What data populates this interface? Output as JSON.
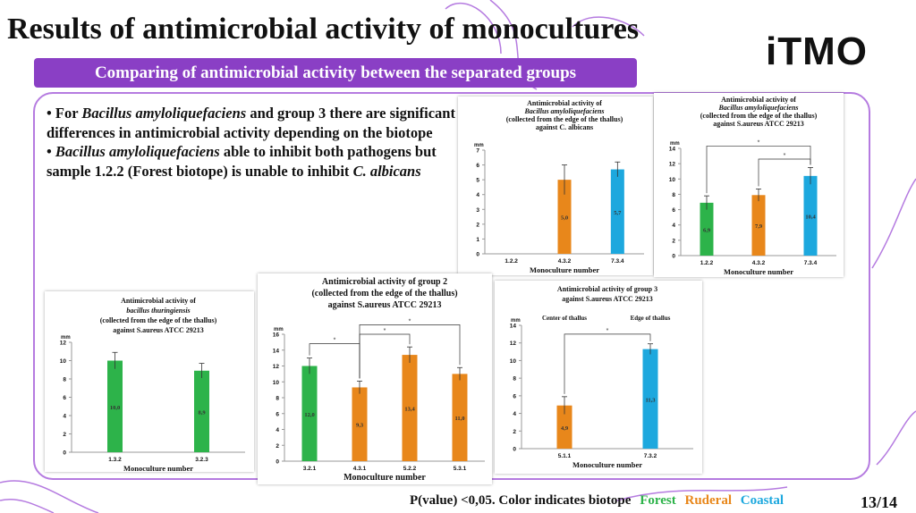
{
  "header": {
    "title": "Results of antimicrobial activity of monocultures",
    "logo": "iTMO",
    "banner": "Comparing of antimicrobial activity between the separated groups"
  },
  "bullets": [
    {
      "a": "• For ",
      "b": "Bacillus amyloliquefaciens",
      "c": " and group 3 there are significant differences in antimicrobial activity depending on the biotope"
    },
    {
      "a": "• ",
      "b": "Bacillus amyloliquefaciens",
      "c": " able to inhibit both pathogens but sample 1.2.2 (Forest biotope) is unable to inhibit ",
      "d": "C. albicans"
    }
  ],
  "footer": {
    "note": "P(value) <0,05. Color indicates biotope",
    "forest": "Forest",
    "ruderal": "Ruderal",
    "coastal": "Coastal",
    "page": "13/14"
  },
  "colors": {
    "forest": "#2db34a",
    "ruderal": "#e8871b",
    "coastal": "#1da8de",
    "accent": "#8a3fc5"
  },
  "chart_data": [
    {
      "id": "ba-albicans",
      "type": "bar",
      "title": [
        "Antimicrobial activity of",
        "Bacillus amyloliquefaciens",
        "(collected from the edge of the thallus)",
        "against C. albicans"
      ],
      "ylabel": "mm",
      "xlabel": "Monoculture number",
      "ylim": [
        0,
        7
      ],
      "yticks": [
        0,
        1,
        2,
        3,
        4,
        5,
        6,
        7
      ],
      "categories": [
        "1.2.2",
        "4.3.2",
        "7.3.4"
      ],
      "values": [
        0,
        5.0,
        5.7
      ],
      "labels": [
        "",
        "5,0",
        "5,7"
      ],
      "errors": [
        0,
        1.0,
        0.5
      ],
      "biotope": [
        "forest",
        "ruderal",
        "coastal"
      ],
      "sig": []
    },
    {
      "id": "ba-aureus",
      "type": "bar",
      "title": [
        "Antimicrobial activity of",
        "Bacillus amyloliquefaciens",
        "(collected from the edge of the thallus)",
        "against S.aureus ATCC 29213"
      ],
      "ylabel": "mm",
      "xlabel": "Monoculture number",
      "ylim": [
        0,
        14
      ],
      "yticks": [
        0,
        2,
        4,
        6,
        8,
        10,
        12,
        14
      ],
      "categories": [
        "1.2.2",
        "4.3.2",
        "7.3.4"
      ],
      "values": [
        6.9,
        7.9,
        10.4
      ],
      "labels": [
        "6,9",
        "7,9",
        "10,4"
      ],
      "errors": [
        0.9,
        0.8,
        1.1
      ],
      "biotope": [
        "forest",
        "ruderal",
        "coastal"
      ],
      "sig": [
        {
          "from": 0,
          "to": 2,
          "level": 14.3,
          "mark": "*"
        },
        {
          "from": 1,
          "to": 2,
          "level": 12.6,
          "mark": "*"
        }
      ]
    },
    {
      "id": "bt-aureus",
      "type": "bar",
      "title": [
        "Antimicrobial activity of",
        "bacillus thuringiensis",
        "(collected from the edge of the thallus)",
        "against S.aureus ATCC 29213"
      ],
      "ylabel": "mm",
      "xlabel": "Monoculture number",
      "ylim": [
        0,
        12
      ],
      "yticks": [
        0,
        2,
        4,
        6,
        8,
        10,
        12
      ],
      "categories": [
        "1.3.2",
        "3.2.3"
      ],
      "values": [
        10.0,
        8.9
      ],
      "labels": [
        "10,0",
        "8,9"
      ],
      "errors": [
        0.9,
        0.8
      ],
      "biotope": [
        "forest",
        "forest"
      ],
      "sig": []
    },
    {
      "id": "group2-aureus",
      "type": "bar",
      "title": [
        "Antimicrobial activity of group 2",
        "(collected from the edge of the thallus)",
        "against S.aureus ATCC 29213"
      ],
      "ylabel": "mm",
      "xlabel": "Monoculture number",
      "ylim": [
        0,
        16
      ],
      "yticks": [
        0,
        2,
        4,
        6,
        8,
        10,
        12,
        14,
        16
      ],
      "categories": [
        "3.2.1",
        "4.3.1",
        "5.2.2",
        "5.3.1"
      ],
      "values": [
        12.0,
        9.3,
        13.4,
        11.0
      ],
      "labels": [
        "12,0",
        "9,3",
        "13,4",
        "11,0"
      ],
      "errors": [
        1.0,
        0.8,
        1.0,
        0.8
      ],
      "biotope": [
        "forest",
        "ruderal",
        "ruderal",
        "ruderal"
      ],
      "sig": [
        {
          "from": 0,
          "to": 1,
          "level": 14.8,
          "mark": "*"
        },
        {
          "from": 1,
          "to": 2,
          "level": 16.0,
          "mark": "*"
        },
        {
          "from": 1,
          "to": 3,
          "level": 17.2,
          "mark": "*"
        }
      ]
    },
    {
      "id": "group3-aureus",
      "type": "bar",
      "title": [
        "Antimicrobial activity of group 3",
        "against S.aureus ATCC 29213"
      ],
      "ylabel": "mm",
      "xlabel": "Monoculture number",
      "ylim": [
        0,
        14
      ],
      "yticks": [
        0,
        2,
        4,
        6,
        8,
        10,
        12,
        14
      ],
      "categories": [
        "5.1.1",
        "7.3.2"
      ],
      "group_labels": [
        "Center of thallus",
        "Edge of thallus"
      ],
      "values": [
        4.9,
        11.3
      ],
      "labels": [
        "4,9",
        "11,3"
      ],
      "errors": [
        1.0,
        0.6
      ],
      "biotope": [
        "ruderal",
        "coastal"
      ],
      "sig": [
        {
          "from": 0,
          "to": 1,
          "level": 13.0,
          "mark": "*"
        }
      ]
    }
  ]
}
